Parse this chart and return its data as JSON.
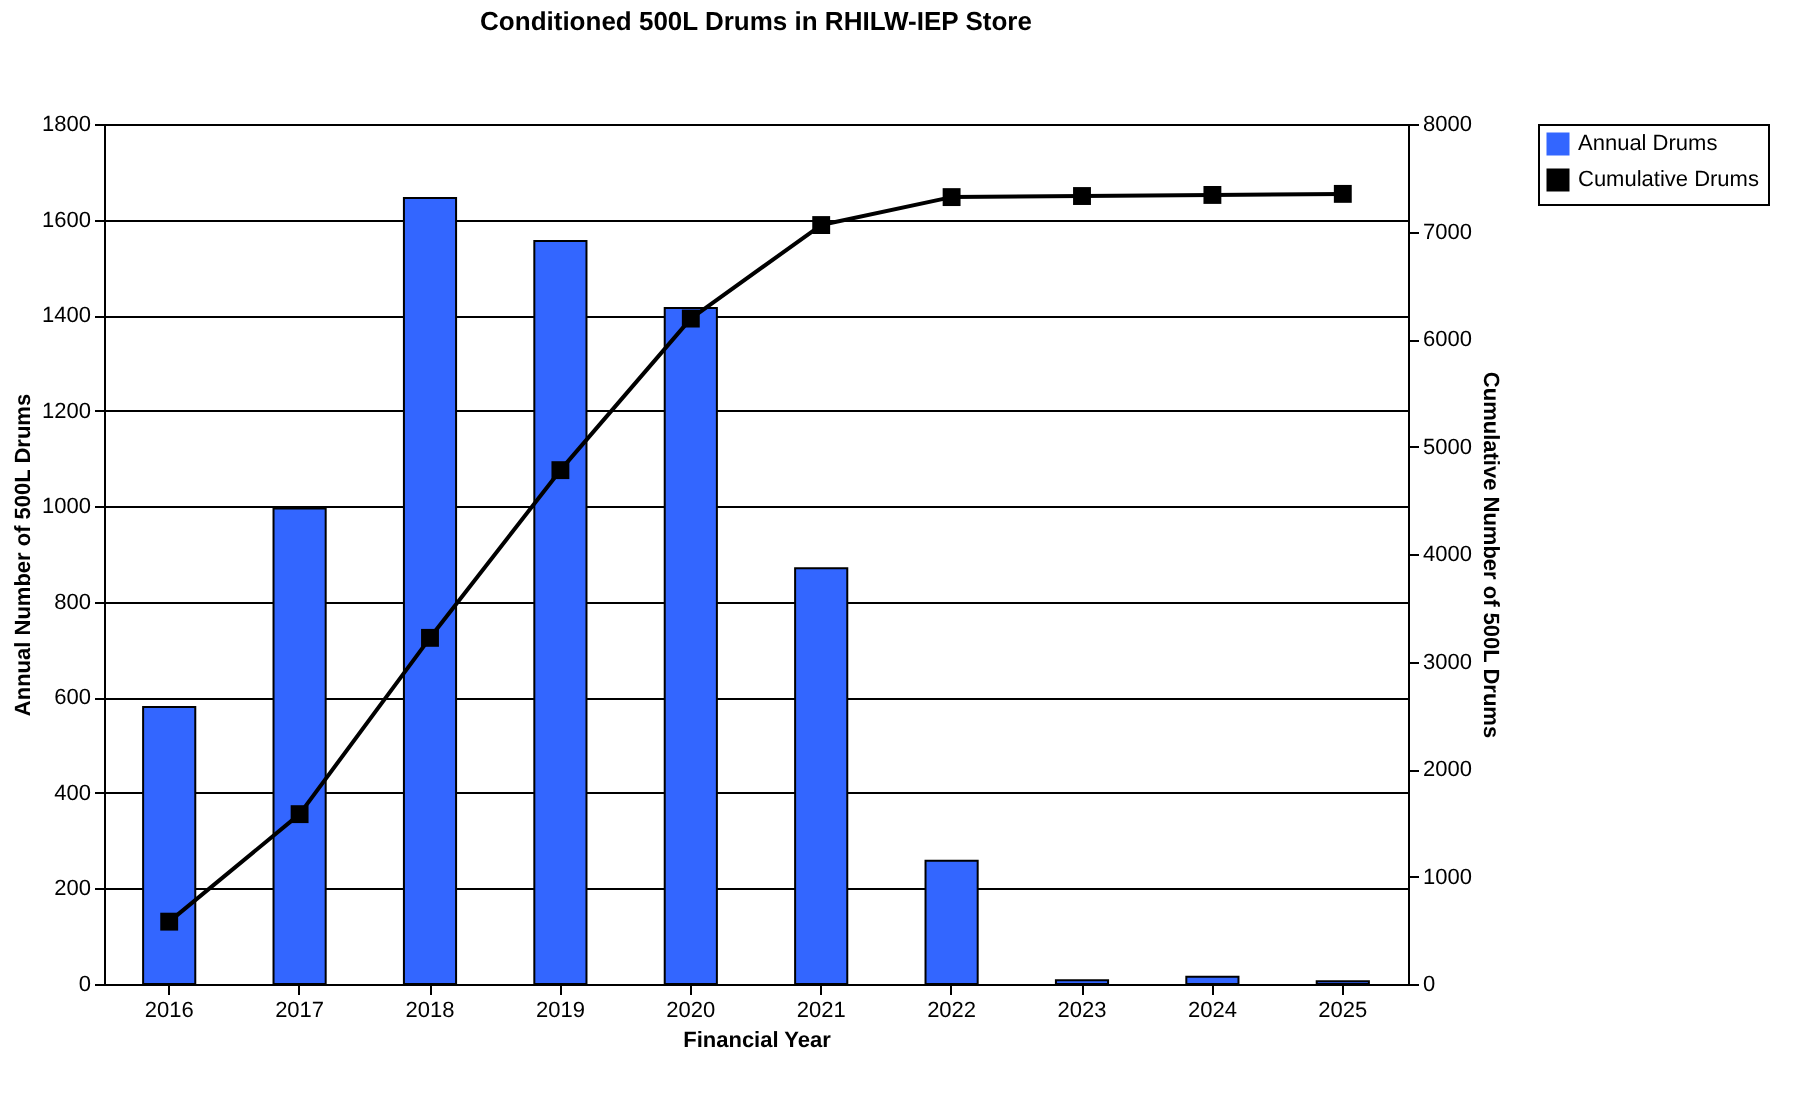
{
  "chart_data": {
    "type": "bar",
    "title": "Conditioned 500L Drums in RHILW-IEP Store",
    "xlabel": "Financial Year",
    "ylabel": "Annual Number of 500L Drums",
    "y2label": "Cumulative Number of 500L Drums",
    "categories": [
      "2016",
      "2017",
      "2018",
      "2019",
      "2020",
      "2021",
      "2022",
      "2023",
      "2024",
      "2025"
    ],
    "series": [
      {
        "name": "Annual Drums",
        "color": "#3366ff",
        "values": [
          580,
          995,
          1645,
          1555,
          1415,
          870,
          258,
          8,
          15,
          6
        ]
      },
      {
        "name": "Cumulative Drums",
        "type": "line",
        "axis": "y2",
        "color": "#000000",
        "marker": "square",
        "values": [
          580,
          1580,
          3220,
          4780,
          6190,
          7060,
          7320,
          7330,
          7340,
          7350
        ]
      }
    ],
    "ylim": [
      0,
      1800
    ],
    "yticks": [
      0,
      200,
      400,
      600,
      800,
      1000,
      1200,
      1400,
      1600,
      1800
    ],
    "y2lim": [
      0,
      8000
    ],
    "y2ticks": [
      0,
      1000,
      2000,
      3000,
      4000,
      5000,
      6000,
      7000,
      8000
    ],
    "grid": "y",
    "legend": "right"
  }
}
